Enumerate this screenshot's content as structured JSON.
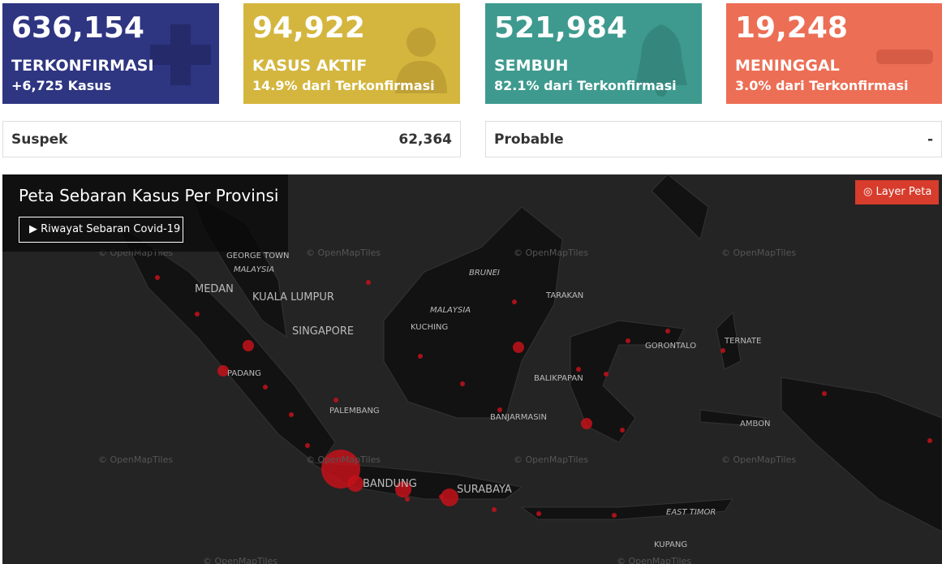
{
  "cards": [
    {
      "value": "636,154",
      "label": "TERKONFIRMASI",
      "sub": "+6,725 Kasus"
    },
    {
      "value": "94,922",
      "label": "KASUS AKTIF",
      "sub": "14.9% dari Terkonfirmasi"
    },
    {
      "value": "521,984",
      "label": "SEMBUH",
      "sub": "82.1% dari Terkonfirmasi"
    },
    {
      "value": "19,248",
      "label": "MENINGGAL",
      "sub": "3.0% dari Terkonfirmasi"
    }
  ],
  "summary": [
    {
      "label": "Suspek",
      "value": "62,364"
    },
    {
      "label": "Probable",
      "value": "-"
    }
  ],
  "map": {
    "title": "Peta Sebaran Kasus Per Provinsi",
    "history_button": "Riwayat Sebaran Covid-19",
    "layer_button": "Layer Peta",
    "watermark": "© OpenMapTiles",
    "labels": [
      "MEDAN",
      "GEORGE TOWN",
      "MALAYSIA",
      "KUALA LUMPUR",
      "SINGAPORE",
      "PADANG",
      "PALEMBANG",
      "BRUNEI",
      "MALAYSIA",
      "KUCHING",
      "TARAKAN",
      "BALIKPAPAN",
      "BANJARMASIN",
      "BANDUNG",
      "SURABAYA",
      "GORONTALO",
      "TERNATE",
      "AMBON",
      "EAST TIMOR",
      "KUPANG"
    ]
  }
}
